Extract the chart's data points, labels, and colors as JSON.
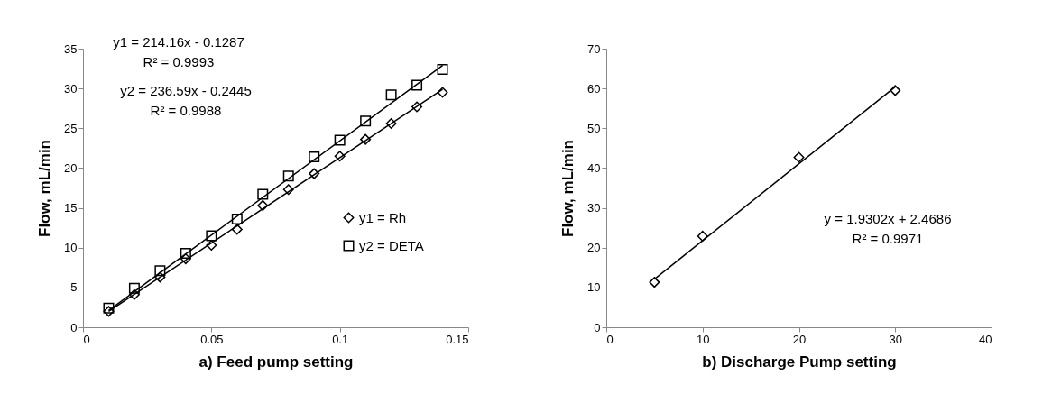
{
  "chart_data": [
    {
      "type": "scatter",
      "xlabel": "a) Feed pump setting",
      "ylabel": "Flow, mL/min",
      "xlim": [
        0,
        0.15
      ],
      "xticks": [
        0,
        0.05,
        0.1,
        0.15
      ],
      "ylim": [
        0,
        35
      ],
      "yticks": [
        0,
        5,
        10,
        15,
        20,
        25,
        30,
        35
      ],
      "grid": false,
      "legend": "right",
      "annotations": [
        "y1 = 214.16x - 0.1287\nR² = 0.9993",
        "y2 = 236.59x - 0.2445\nR² = 0.9988"
      ],
      "series": [
        {
          "name": "y1 = Rh",
          "type": "scatter",
          "marker": "diamond",
          "color": "#000000",
          "x": [
            0.01,
            0.02,
            0.03,
            0.04,
            0.05,
            0.06,
            0.07,
            0.08,
            0.09,
            0.1,
            0.11,
            0.12,
            0.13,
            0.14
          ],
          "values": [
            2.0,
            4.1,
            6.3,
            8.6,
            10.3,
            12.3,
            15.3,
            17.3,
            19.3,
            21.5,
            23.6,
            25.6,
            27.7,
            29.5
          ]
        },
        {
          "name": "y2 = DETA",
          "type": "scatter",
          "marker": "square",
          "color": "#000000",
          "x": [
            0.01,
            0.02,
            0.03,
            0.04,
            0.05,
            0.06,
            0.07,
            0.08,
            0.09,
            0.1,
            0.11,
            0.12,
            0.13,
            0.14
          ],
          "values": [
            2.4,
            4.9,
            7.1,
            9.3,
            11.5,
            13.6,
            16.7,
            19.0,
            21.4,
            23.5,
            25.9,
            29.2,
            30.4,
            32.4
          ]
        },
        {
          "type": "line",
          "color": "#000000",
          "x": [
            0.01,
            0.14
          ],
          "values": [
            2.0,
            29.9
          ]
        },
        {
          "type": "line",
          "color": "#000000",
          "x": [
            0.01,
            0.14
          ],
          "values": [
            2.1,
            32.9
          ]
        }
      ]
    },
    {
      "type": "scatter",
      "xlabel": "b) Discharge Pump setting",
      "ylabel": "Flow, mL/min",
      "xlim": [
        0,
        40
      ],
      "xticks": [
        0,
        10,
        20,
        30,
        40
      ],
      "ylim": [
        0,
        70
      ],
      "yticks": [
        0,
        10,
        20,
        30,
        40,
        50,
        60,
        70
      ],
      "grid": false,
      "annotations": [
        "y = 1.9302x + 2.4686\nR² = 0.9971"
      ],
      "series": [
        {
          "type": "scatter",
          "marker": "diamond",
          "color": "#000000",
          "x": [
            5,
            10,
            20,
            30
          ],
          "values": [
            11.3,
            22.9,
            42.7,
            59.5
          ]
        },
        {
          "type": "line",
          "color": "#000000",
          "x": [
            5,
            30
          ],
          "values": [
            12.1,
            60.4
          ]
        }
      ]
    }
  ]
}
